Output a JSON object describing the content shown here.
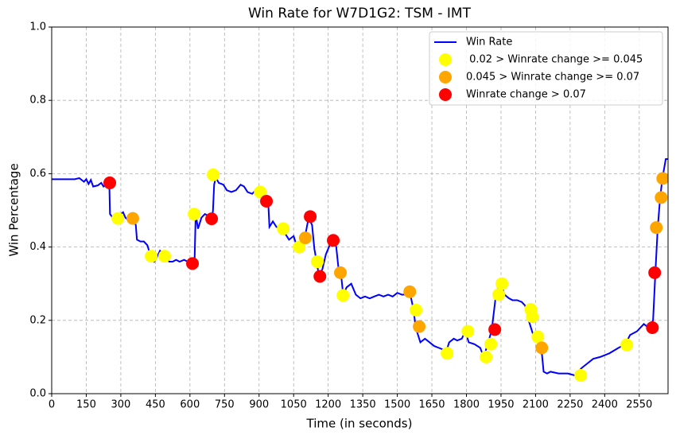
{
  "chart_data": {
    "type": "line",
    "title": "Win Rate for W7D1G2: TSM - IMT",
    "x_label": "Time (in seconds)",
    "y_label": "Win Percentage",
    "xlim": [
      0,
      2675
    ],
    "ylim": [
      0,
      1
    ],
    "xticks": [
      0,
      150,
      300,
      450,
      600,
      750,
      900,
      1050,
      1200,
      1350,
      1500,
      1650,
      1800,
      1950,
      2100,
      2250,
      2400,
      2550
    ],
    "yticks": [
      {
        "value": 0,
        "label": "0.0"
      },
      {
        "value": 0.2,
        "label": "0.2"
      },
      {
        "value": 0.4,
        "label": "0.4"
      },
      {
        "value": 0.6,
        "label": "0.6"
      },
      {
        "value": 0.8,
        "label": "0.8"
      },
      {
        "value": 1,
        "label": "1.0"
      }
    ],
    "grid": true,
    "legend": "upper right",
    "series": [
      {
        "name": "Win Rate",
        "kind": "line",
        "color": "#0000ff",
        "x": [
          0,
          100,
          120,
          140,
          150,
          160,
          170,
          180,
          200,
          215,
          225,
          240,
          250,
          253,
          265,
          280,
          290,
          300,
          310,
          320,
          340,
          355,
          365,
          370,
          385,
          400,
          415,
          430,
          445,
          455,
          470,
          485,
          500,
          510,
          525,
          540,
          555,
          575,
          590,
          605,
          612,
          620,
          625,
          635,
          650,
          665,
          680,
          695,
          700,
          705,
          712,
          725,
          745,
          760,
          780,
          800,
          820,
          835,
          850,
          870,
          885,
          905,
          925,
          940,
          945,
          960,
          975,
          990,
          1010,
          1030,
          1050,
          1065,
          1085,
          1100,
          1115,
          1130,
          1140,
          1150,
          1160,
          1175,
          1190,
          1210,
          1225,
          1235,
          1245,
          1255,
          1265,
          1280,
          1300,
          1320,
          1340,
          1360,
          1380,
          1400,
          1420,
          1440,
          1460,
          1480,
          1500,
          1520,
          1535,
          1550,
          1560,
          1570,
          1580,
          1600,
          1620,
          1640,
          1660,
          1680,
          1700,
          1710,
          1725,
          1745,
          1760,
          1780,
          1795,
          1810,
          1835,
          1860,
          1875,
          1895,
          1910,
          1930,
          1950,
          1965,
          1985,
          2000,
          2020,
          2040,
          2055,
          2070,
          2090,
          2110,
          2125,
          2135,
          2150,
          2165,
          2200,
          2240,
          2270,
          2300,
          2320,
          2350,
          2380,
          2420,
          2460,
          2490,
          2510,
          2540,
          2570,
          2590,
          2610,
          2620,
          2630,
          2640,
          2650,
          2665,
          2675
        ],
        "y": [
          0.585,
          0.585,
          0.588,
          0.578,
          0.585,
          0.572,
          0.583,
          0.565,
          0.568,
          0.575,
          0.565,
          0.572,
          0.575,
          0.49,
          0.48,
          0.485,
          0.478,
          0.49,
          0.495,
          0.48,
          0.47,
          0.478,
          0.46,
          0.42,
          0.415,
          0.415,
          0.405,
          0.375,
          0.36,
          0.37,
          0.39,
          0.38,
          0.37,
          0.36,
          0.36,
          0.365,
          0.36,
          0.365,
          0.36,
          0.36,
          0.355,
          0.36,
          0.49,
          0.45,
          0.48,
          0.49,
          0.485,
          0.475,
          0.5,
          0.57,
          0.59,
          0.575,
          0.57,
          0.555,
          0.55,
          0.555,
          0.57,
          0.565,
          0.55,
          0.545,
          0.555,
          0.55,
          0.525,
          0.52,
          0.455,
          0.47,
          0.455,
          0.45,
          0.44,
          0.42,
          0.43,
          0.4,
          0.42,
          0.43,
          0.48,
          0.46,
          0.395,
          0.36,
          0.32,
          0.34,
          0.38,
          0.41,
          0.42,
          0.4,
          0.34,
          0.33,
          0.27,
          0.29,
          0.3,
          0.27,
          0.26,
          0.265,
          0.26,
          0.265,
          0.27,
          0.265,
          0.27,
          0.265,
          0.275,
          0.27,
          0.27,
          0.28,
          0.26,
          0.23,
          0.18,
          0.14,
          0.15,
          0.14,
          0.13,
          0.125,
          0.12,
          0.11,
          0.14,
          0.15,
          0.145,
          0.15,
          0.17,
          0.14,
          0.135,
          0.125,
          0.1,
          0.14,
          0.175,
          0.28,
          0.3,
          0.27,
          0.26,
          0.255,
          0.255,
          0.25,
          0.24,
          0.2,
          0.16,
          0.155,
          0.125,
          0.06,
          0.055,
          0.06,
          0.055,
          0.055,
          0.05,
          0.07,
          0.08,
          0.095,
          0.1,
          0.11,
          0.125,
          0.135,
          0.16,
          0.17,
          0.19,
          0.18,
          0.2,
          0.33,
          0.45,
          0.53,
          0.585,
          0.64,
          0.64
        ]
      },
      {
        "name": " 0.02 > Winrate change >= 0.045",
        "kind": "scatter",
        "color": "#ffff00",
        "x": [
          287,
          432,
          490,
          618,
          701,
          905,
          1005,
          1074,
          1153,
          1264,
          1581,
          1716,
          1806,
          1885,
          1906,
          1940,
          1954,
          2079,
          2086,
          2110,
          2296,
          2496
        ],
        "y": [
          0.478,
          0.375,
          0.375,
          0.49,
          0.597,
          0.55,
          0.45,
          0.4,
          0.36,
          0.268,
          0.228,
          0.11,
          0.17,
          0.1,
          0.135,
          0.27,
          0.3,
          0.23,
          0.21,
          0.155,
          0.05,
          0.133
        ]
      },
      {
        "name": "0.045 > Winrate change >= 0.07",
        "kind": "scatter",
        "color": "#ffa500",
        "x": [
          352,
          1101,
          1253,
          1554,
          1595,
          2127,
          2624,
          2645,
          2652
        ],
        "y": [
          0.478,
          0.425,
          0.33,
          0.278,
          0.183,
          0.125,
          0.453,
          0.535,
          0.587
        ]
      },
      {
        "name": "Winrate change > 0.07",
        "kind": "scatter",
        "color": "#ff0000",
        "x": [
          252,
          611,
          694,
          932,
          1122,
          1164,
          1222,
          1923,
          2607,
          2617
        ],
        "y": [
          0.575,
          0.355,
          0.477,
          0.525,
          0.483,
          0.32,
          0.418,
          0.175,
          0.18,
          0.33
        ]
      }
    ]
  }
}
